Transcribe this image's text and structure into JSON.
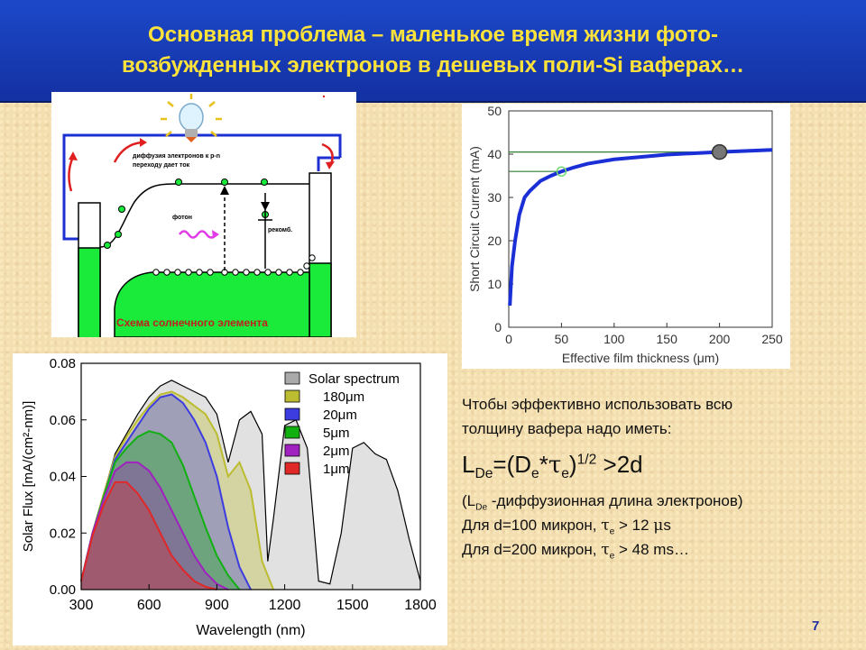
{
  "title": {
    "line1": "Основная проблема – маленькое время жизни фото-",
    "line2": "возбужденных электронов в дешевых поли-Si вaферах…"
  },
  "schematic": {
    "diffusion_label_1": "диффузия электронов к p-n",
    "diffusion_label_2": "переходу дает ток",
    "photon_label": "фотон",
    "recomb_label": "рекомб.",
    "caption": "Схема солнечного элемента"
  },
  "chart_data": [
    {
      "type": "line",
      "xlabel": "Effective film thickness (μm)",
      "ylabel": "Short Circuit Current (mA)",
      "xlim": [
        0,
        250
      ],
      "ylim": [
        0,
        50
      ],
      "xticks": [
        "0",
        "50",
        "100",
        "150",
        "200",
        "250"
      ],
      "yticks": [
        "0",
        "10",
        "20",
        "30",
        "40",
        "50"
      ],
      "series": [
        {
          "x": [
            1,
            3,
            6,
            10,
            15,
            20,
            30,
            40,
            50,
            60,
            75,
            100,
            150,
            200,
            250
          ],
          "y": [
            5,
            14,
            20,
            26,
            30,
            31.5,
            33.8,
            35,
            36,
            36.8,
            37.8,
            38.8,
            39.9,
            40.5,
            41
          ]
        }
      ],
      "reference_lines": [
        36,
        40.5
      ],
      "markers": [
        {
          "x": 50,
          "y": 36,
          "style": "open-circle"
        },
        {
          "x": 200,
          "y": 40.5,
          "style": "filled-circle"
        }
      ]
    },
    {
      "type": "area",
      "xlabel": "Wavelength (nm)",
      "ylabel": "Solar Flux [mA/(cm²-nm)]",
      "xlim": [
        300,
        1800
      ],
      "ylim": [
        0,
        0.08
      ],
      "xticks": [
        "300",
        "600",
        "900",
        "1200",
        "1500",
        "1800"
      ],
      "yticks": [
        "0.00",
        "0.02",
        "0.04",
        "0.06",
        "0.08"
      ],
      "series": [
        {
          "name": "Solar spectrum",
          "color": "#aaaaaa",
          "x": [
            300,
            350,
            400,
            450,
            500,
            550,
            600,
            650,
            700,
            750,
            800,
            850,
            900,
            950,
            1000,
            1050,
            1100,
            1125,
            1150,
            1200,
            1250,
            1300,
            1350,
            1400,
            1450,
            1500,
            1550,
            1600,
            1650,
            1700,
            1750,
            1800
          ],
          "y": [
            0.003,
            0.02,
            0.034,
            0.048,
            0.055,
            0.062,
            0.068,
            0.072,
            0.074,
            0.072,
            0.07,
            0.068,
            0.062,
            0.045,
            0.06,
            0.063,
            0.055,
            0.01,
            0.025,
            0.058,
            0.06,
            0.05,
            0.003,
            0.002,
            0.02,
            0.05,
            0.052,
            0.048,
            0.046,
            0.035,
            0.018,
            0.003
          ]
        },
        {
          "name": "180μm",
          "color": "#bcbc30",
          "x": [
            300,
            350,
            400,
            450,
            500,
            550,
            600,
            650,
            700,
            750,
            800,
            850,
            900,
            950,
            1000,
            1050,
            1100,
            1150
          ],
          "y": [
            0.003,
            0.02,
            0.034,
            0.047,
            0.054,
            0.06,
            0.065,
            0.069,
            0.07,
            0.068,
            0.065,
            0.062,
            0.055,
            0.04,
            0.045,
            0.035,
            0.01,
            0.0
          ]
        },
        {
          "name": "20μm",
          "color": "#3c3ce0",
          "x": [
            300,
            350,
            400,
            450,
            500,
            550,
            600,
            650,
            700,
            750,
            800,
            850,
            900,
            950,
            1000,
            1050
          ],
          "y": [
            0.003,
            0.02,
            0.033,
            0.046,
            0.052,
            0.058,
            0.064,
            0.068,
            0.069,
            0.066,
            0.06,
            0.052,
            0.04,
            0.022,
            0.008,
            0.0
          ]
        },
        {
          "name": "5μm",
          "color": "#10b010",
          "x": [
            300,
            350,
            400,
            450,
            500,
            550,
            600,
            650,
            700,
            750,
            800,
            850,
            900,
            950,
            1000
          ],
          "y": [
            0.003,
            0.02,
            0.033,
            0.045,
            0.05,
            0.054,
            0.056,
            0.055,
            0.052,
            0.044,
            0.033,
            0.022,
            0.012,
            0.005,
            0.0
          ]
        },
        {
          "name": "2μm",
          "color": "#a020c0",
          "x": [
            300,
            350,
            400,
            450,
            500,
            550,
            600,
            650,
            700,
            750,
            800,
            850,
            900,
            950
          ],
          "y": [
            0.003,
            0.02,
            0.032,
            0.042,
            0.045,
            0.045,
            0.042,
            0.036,
            0.028,
            0.02,
            0.012,
            0.006,
            0.002,
            0.0
          ]
        },
        {
          "name": "1μm",
          "color": "#e02828",
          "x": [
            300,
            350,
            400,
            450,
            500,
            550,
            600,
            650,
            700,
            750,
            800,
            850,
            900
          ],
          "y": [
            0.003,
            0.019,
            0.03,
            0.038,
            0.038,
            0.034,
            0.028,
            0.02,
            0.012,
            0.007,
            0.003,
            0.001,
            0.0
          ]
        }
      ]
    }
  ],
  "text": {
    "line1": "Чтобы эффективно использовать всю",
    "line2": "толщину вафера надо иметь:",
    "formula": {
      "L": "L",
      "L_sub": "De",
      "eq_open": "=(D",
      "D_sub": "e",
      "star": "*",
      "tau": "τ",
      "tau_sub": "e",
      "close": ")",
      "exp": "1/2",
      "rhs": " >2d"
    },
    "note_open": "(L",
    "note_sub": "De",
    "note_rest": " -диффузионная длина электронов)",
    "cond1_pre": "Для d=100 микрон, ",
    "tau": "τ",
    "e_sub": "e",
    "cond1_post": " > 12 ",
    "mu": "μ",
    "cond1_unit": "s",
    "cond2_pre": "Для d=200 микрон, ",
    "cond2_post": " > 48 ms…"
  },
  "page_number": "7"
}
